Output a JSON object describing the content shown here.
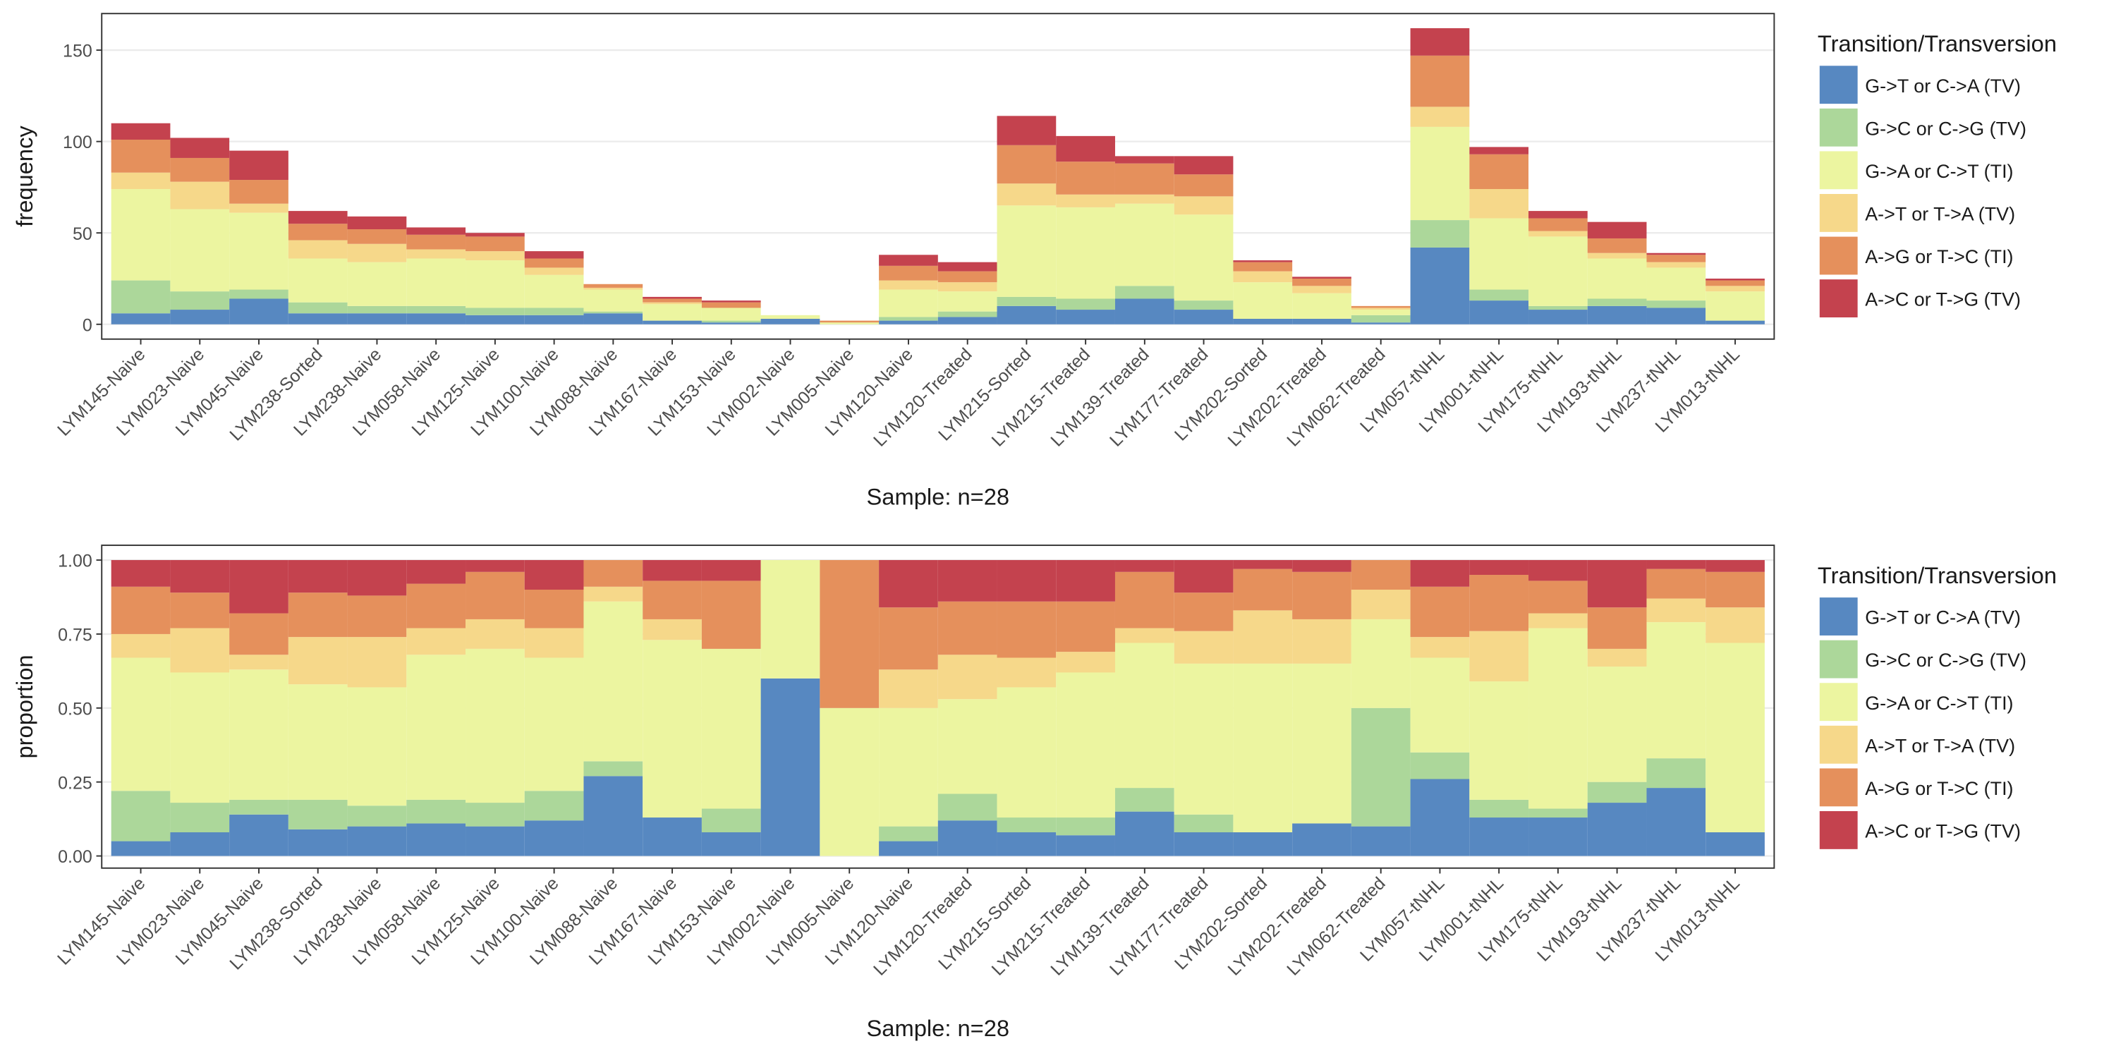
{
  "chart_data": [
    {
      "type": "bar",
      "stacked": true,
      "grid": true,
      "x_label": "Sample: n=28",
      "y_label": "frequency",
      "legend_title": "Transition/Transversion",
      "legend": "right",
      "categories": [
        "LYM145-Naive",
        "LYM023-Naive",
        "LYM045-Naive",
        "LYM238-Sorted",
        "LYM238-Naive",
        "LYM058-Naive",
        "LYM125-Naive",
        "LYM100-Naive",
        "LYM088-Naive",
        "LYM167-Naive",
        "LYM153-Naive",
        "LYM002-Naive",
        "LYM005-Naive",
        "LYM120-Naive",
        "LYM120-Treated",
        "LYM215-Sorted",
        "LYM215-Treated",
        "LYM139-Treated",
        "LYM177-Treated",
        "LYM202-Sorted",
        "LYM202-Treated",
        "LYM062-Treated",
        "LYM057-tNHL",
        "LYM001-tNHL",
        "LYM175-tNHL",
        "LYM193-tNHL",
        "LYM237-tNHL",
        "LYM013-tNHL"
      ],
      "ylim": [
        -8.1,
        170
      ],
      "yticks": [
        0,
        50,
        100,
        150
      ],
      "series": [
        {
          "name": "G->T or C->A (TV)",
          "color": "#5788c1",
          "values": [
            6,
            8,
            14,
            6,
            6,
            6,
            5,
            5,
            6,
            2,
            1,
            3,
            0,
            2,
            4,
            10,
            8,
            14,
            8,
            3,
            3,
            1,
            42,
            13,
            8,
            10,
            9,
            2
          ]
        },
        {
          "name": "G->C or C->G (TV)",
          "color": "#acd79a",
          "values": [
            18,
            10,
            5,
            6,
            4,
            4,
            4,
            4,
            1,
            0,
            1,
            0,
            0,
            2,
            3,
            5,
            6,
            7,
            5,
            0,
            0,
            4,
            15,
            6,
            2,
            4,
            4,
            0
          ]
        },
        {
          "name": "G->A or C->T (TI)",
          "color": "#ecf5a0",
          "values": [
            50,
            45,
            42,
            24,
            24,
            26,
            26,
            18,
            12,
            9,
            7,
            2,
            1,
            15,
            11,
            50,
            50,
            45,
            47,
            20,
            14,
            3,
            51,
            39,
            38,
            22,
            18,
            16
          ]
        },
        {
          "name": "A->T or T->A (TV)",
          "color": "#f6d88a",
          "values": [
            9,
            15,
            5,
            10,
            10,
            5,
            5,
            4,
            1,
            1,
            0,
            0,
            0,
            5,
            5,
            12,
            7,
            5,
            10,
            6,
            4,
            1,
            11,
            16,
            3,
            3,
            3,
            3
          ]
        },
        {
          "name": "A->G or T->C (TI)",
          "color": "#e5905c",
          "values": [
            18,
            13,
            13,
            9,
            8,
            8,
            8,
            5,
            2,
            2,
            3,
            0,
            1,
            8,
            6,
            21,
            18,
            17,
            12,
            5,
            4,
            1,
            28,
            19,
            7,
            8,
            4,
            3
          ]
        },
        {
          "name": "A->C or T->G (TV)",
          "color": "#c4424e",
          "values": [
            9,
            11,
            16,
            7,
            7,
            4,
            2,
            4,
            0,
            1,
            1,
            0,
            0,
            6,
            5,
            16,
            14,
            4,
            10,
            1,
            1,
            0,
            15,
            4,
            4,
            9,
            1,
            1
          ]
        }
      ]
    },
    {
      "type": "bar",
      "stacked": true,
      "grid": true,
      "x_label": "Sample: n=28",
      "y_label": "proportion",
      "legend_title": "Transition/Transversion",
      "legend": "right",
      "categories": [
        "LYM145-Naive",
        "LYM023-Naive",
        "LYM045-Naive",
        "LYM238-Sorted",
        "LYM238-Naive",
        "LYM058-Naive",
        "LYM125-Naive",
        "LYM100-Naive",
        "LYM088-Naive",
        "LYM167-Naive",
        "LYM153-Naive",
        "LYM002-Naive",
        "LYM005-Naive",
        "LYM120-Naive",
        "LYM120-Treated",
        "LYM215-Sorted",
        "LYM215-Treated",
        "LYM139-Treated",
        "LYM177-Treated",
        "LYM202-Sorted",
        "LYM202-Treated",
        "LYM062-Treated",
        "LYM057-tNHL",
        "LYM001-tNHL",
        "LYM175-tNHL",
        "LYM193-tNHL",
        "LYM237-tNHL",
        "LYM013-tNHL"
      ],
      "ylim": [
        -0.041,
        1.05
      ],
      "yticks": [
        {
          "value": 0,
          "label": "0.00"
        },
        {
          "value": 0.25,
          "label": "0.25"
        },
        {
          "value": 0.5,
          "label": "0.50"
        },
        {
          "value": 0.75,
          "label": "0.75"
        },
        {
          "value": 1,
          "label": "1.00"
        }
      ],
      "series": [
        {
          "name": "G->T or C->A (TV)",
          "color": "#5788c1",
          "values": [
            0.05,
            0.08,
            0.14,
            0.09,
            0.1,
            0.11,
            0.1,
            0.12,
            0.27,
            0.13,
            0.08,
            0.6,
            0,
            0.05,
            0.12,
            0.08,
            0.07,
            0.15,
            0.08,
            0.08,
            0.11,
            0.1,
            0.26,
            0.13,
            0.13,
            0.18,
            0.23,
            0.08
          ]
        },
        {
          "name": "G->C or C->G (TV)",
          "color": "#acd79a",
          "values": [
            0.17,
            0.1,
            0.05,
            0.1,
            0.07,
            0.08,
            0.08,
            0.1,
            0.05,
            0,
            0.08,
            0,
            0,
            0.05,
            0.09,
            0.05,
            0.06,
            0.08,
            0.06,
            0,
            0,
            0.4,
            0.09,
            0.06,
            0.03,
            0.07,
            0.1,
            0
          ]
        },
        {
          "name": "G->A or C->T (TI)",
          "color": "#ecf5a0",
          "values": [
            0.45,
            0.44,
            0.44,
            0.39,
            0.4,
            0.49,
            0.52,
            0.45,
            0.54,
            0.6,
            0.54,
            0.4,
            0.5,
            0.4,
            0.32,
            0.44,
            0.49,
            0.49,
            0.51,
            0.57,
            0.54,
            0.3,
            0.32,
            0.4,
            0.61,
            0.39,
            0.46,
            0.64
          ]
        },
        {
          "name": "A->T or T->A (TV)",
          "color": "#f6d88a",
          "values": [
            0.08,
            0.15,
            0.05,
            0.16,
            0.17,
            0.09,
            0.1,
            0.1,
            0.05,
            0.07,
            0,
            0,
            0,
            0.13,
            0.15,
            0.1,
            0.07,
            0.05,
            0.11,
            0.18,
            0.15,
            0.1,
            0.07,
            0.17,
            0.05,
            0.06,
            0.08,
            0.12
          ]
        },
        {
          "name": "A->G or T->C (TI)",
          "color": "#e5905c",
          "values": [
            0.16,
            0.12,
            0.14,
            0.15,
            0.14,
            0.15,
            0.16,
            0.13,
            0.09,
            0.13,
            0.23,
            0,
            0.5,
            0.21,
            0.18,
            0.19,
            0.17,
            0.19,
            0.13,
            0.14,
            0.16,
            0.1,
            0.17,
            0.19,
            0.11,
            0.14,
            0.1,
            0.12
          ]
        },
        {
          "name": "A->C or T->G (TV)",
          "color": "#c4424e",
          "values": [
            0.09,
            0.11,
            0.18,
            0.11,
            0.12,
            0.08,
            0.04,
            0.1,
            0,
            0.07,
            0.07,
            0,
            0,
            0.16,
            0.14,
            0.14,
            0.14,
            0.04,
            0.11,
            0.03,
            0.04,
            0,
            0.09,
            0.05,
            0.07,
            0.16,
            0.03,
            0.04
          ]
        }
      ]
    }
  ]
}
